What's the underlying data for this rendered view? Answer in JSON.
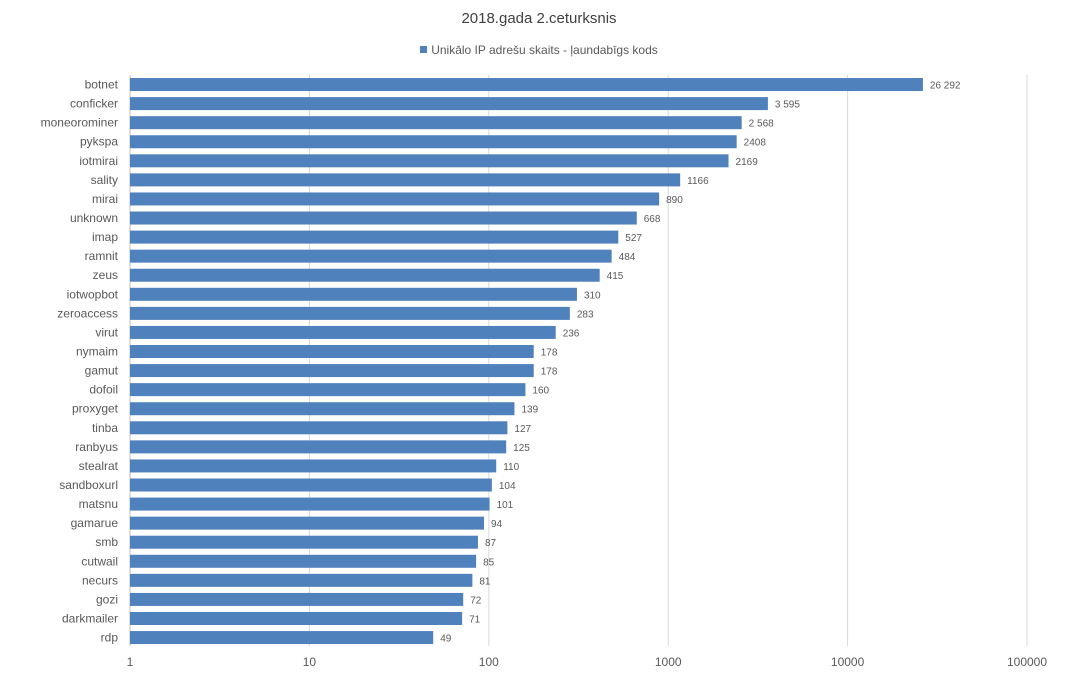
{
  "chart_data": {
    "type": "bar",
    "orientation": "horizontal",
    "title": "2018.gada 2.ceturksnis",
    "xscale": "log",
    "xlim": [
      1,
      100000
    ],
    "xticks": [
      "1",
      "10",
      "100",
      "1000",
      "10000",
      "100000"
    ],
    "legend": "top-center",
    "grid": true,
    "color": "#4f81bd",
    "categories": [
      "botnet",
      "conficker",
      "moneorominer",
      "pykspa",
      "iotmirai",
      "sality",
      "mirai",
      "unknown",
      "imap",
      "ramnit",
      "zeus",
      "iotwopbot",
      "zeroaccess",
      "virut",
      "nymaim",
      "gamut",
      "dofoil",
      "proxyget",
      "tinba",
      "ranbyus",
      "stealrat",
      "sandboxurl",
      "matsnu",
      "gamarue",
      "smb",
      "cutwail",
      "necurs",
      "gozi",
      "darkmailer",
      "rdp"
    ],
    "series": [
      {
        "name": "Unikālo IP adrešu skaits -  ļaundabīgs kods",
        "values": [
          26292,
          3595,
          2568,
          2408,
          2169,
          1166,
          890,
          668,
          527,
          484,
          415,
          310,
          283,
          236,
          178,
          178,
          160,
          139,
          127,
          125,
          110,
          104,
          101,
          94,
          87,
          85,
          81,
          72,
          71,
          49
        ],
        "labels": [
          "26 292",
          "3 595",
          "2 568",
          "2408",
          "2169",
          "1166",
          "890",
          "668",
          "527",
          "484",
          "415",
          "310",
          "283",
          "236",
          "178",
          "178",
          "160",
          "139",
          "127",
          "125",
          "110",
          "104",
          "101",
          "94",
          "87",
          "85",
          "81",
          "72",
          "71",
          "49"
        ]
      }
    ]
  }
}
